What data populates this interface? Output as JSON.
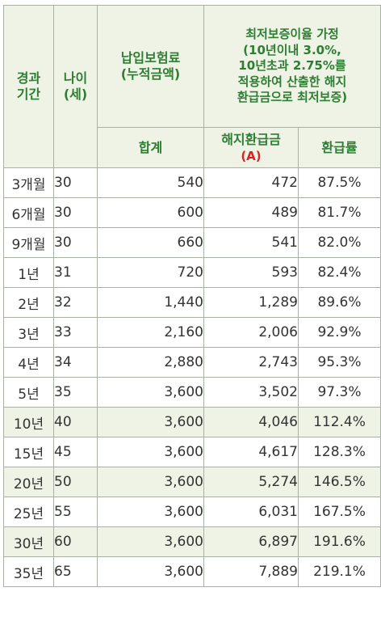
{
  "header": {
    "period": "경과\n기간",
    "age": "나이\n(세)",
    "premium": "납입보험료\n(누적금액)",
    "guarantee": "최저보증이율 가정\n(10년이내 3.0%,\n10년초과 2.75%를\n적용하여 산출한 해지\n환급금으로 최저보증)",
    "sum": "합계",
    "refund": "해지환급금",
    "refund_mark": "(A)",
    "rate": "환급률"
  },
  "rows": [
    {
      "period": "3개월",
      "age": "30",
      "sum": "540",
      "refund": "472",
      "rate": "87.5%",
      "highlight": false
    },
    {
      "period": "6개월",
      "age": "30",
      "sum": "600",
      "refund": "489",
      "rate": "81.7%",
      "highlight": false
    },
    {
      "period": "9개월",
      "age": "30",
      "sum": "660",
      "refund": "541",
      "rate": "82.0%",
      "highlight": false
    },
    {
      "period": "1년",
      "age": "31",
      "sum": "720",
      "refund": "593",
      "rate": "82.4%",
      "highlight": false
    },
    {
      "period": "2년",
      "age": "32",
      "sum": "1,440",
      "refund": "1,289",
      "rate": "89.6%",
      "highlight": false
    },
    {
      "period": "3년",
      "age": "33",
      "sum": "2,160",
      "refund": "2,006",
      "rate": "92.9%",
      "highlight": false
    },
    {
      "period": "4년",
      "age": "34",
      "sum": "2,880",
      "refund": "2,743",
      "rate": "95.3%",
      "highlight": false
    },
    {
      "period": "5년",
      "age": "35",
      "sum": "3,600",
      "refund": "3,502",
      "rate": "97.3%",
      "highlight": false
    },
    {
      "period": "10년",
      "age": "40",
      "sum": "3,600",
      "refund": "4,046",
      "rate": "112.4%",
      "highlight": true
    },
    {
      "period": "15년",
      "age": "45",
      "sum": "3,600",
      "refund": "4,617",
      "rate": "128.3%",
      "highlight": false
    },
    {
      "period": "20년",
      "age": "50",
      "sum": "3,600",
      "refund": "5,274",
      "rate": "146.5%",
      "highlight": true
    },
    {
      "period": "25년",
      "age": "55",
      "sum": "3,600",
      "refund": "6,031",
      "rate": "167.5%",
      "highlight": false
    },
    {
      "period": "30년",
      "age": "60",
      "sum": "3,600",
      "refund": "6,897",
      "rate": "191.6%",
      "highlight": true
    },
    {
      "period": "35년",
      "age": "65",
      "sum": "3,600",
      "refund": "7,889",
      "rate": "219.1%",
      "highlight": false
    }
  ],
  "colors": {
    "header_bg": "#eef3e6",
    "header_text": "#2e7d32",
    "mark_red": "#e02020",
    "border": "#a9b1a6",
    "highlight_row": "#eef3e6"
  }
}
